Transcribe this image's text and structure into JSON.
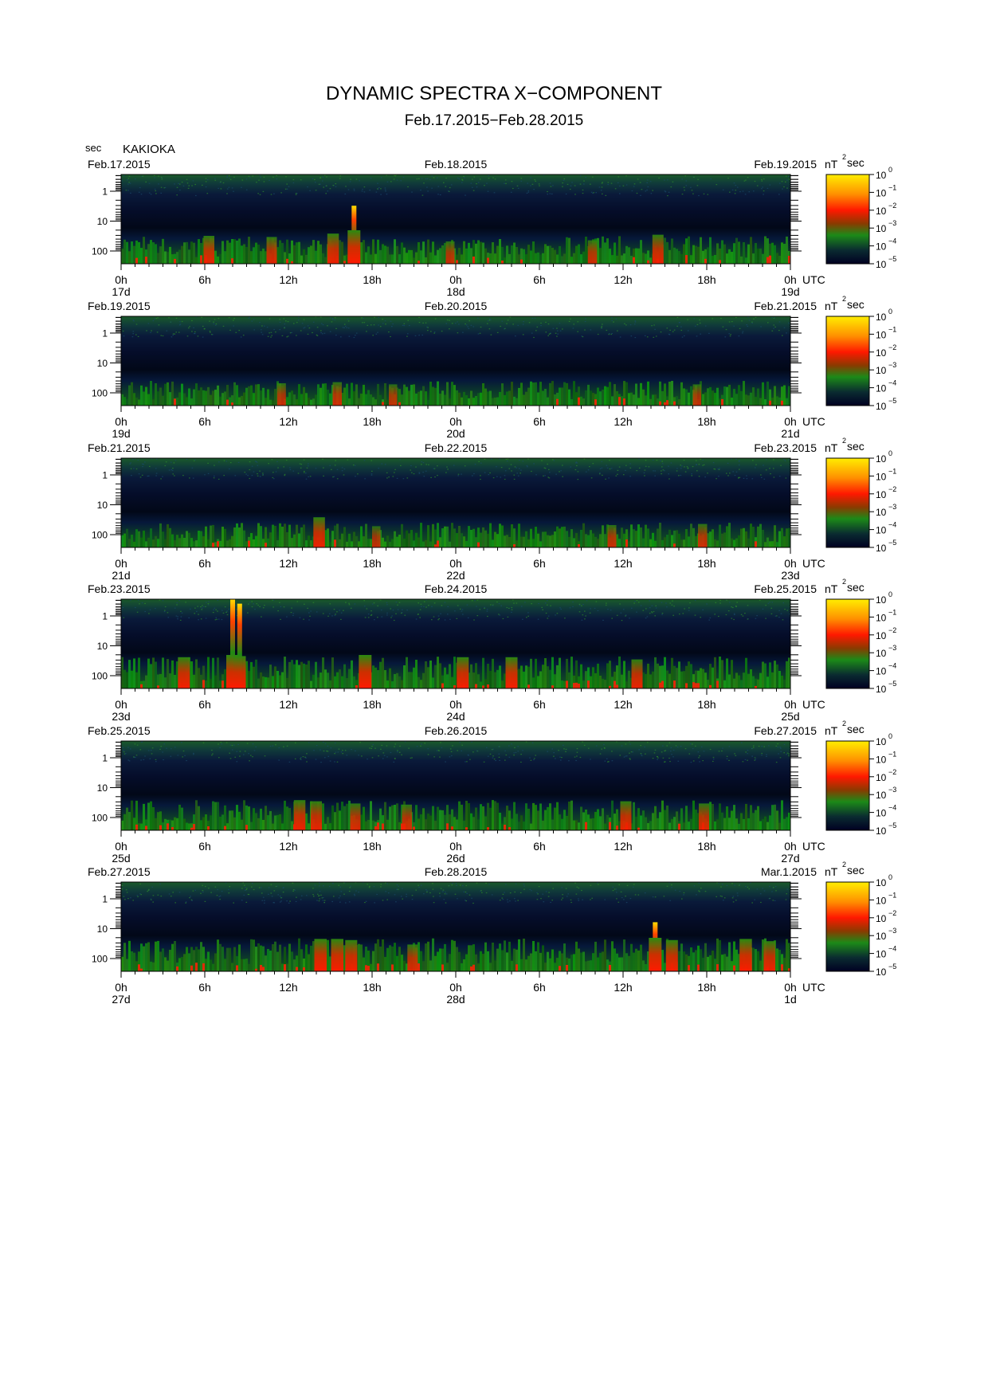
{
  "title": "DYNAMIC SPECTRA X−COMPONENT",
  "subtitle": "Feb.17.2015−Feb.28.2015",
  "y_unit": "sec",
  "station": "KAKIOKA",
  "colorbar_unit": "nT",
  "colorbar_unit_exp": "2",
  "colorbar_unit_suffix": "sec",
  "utc_label": "UTC",
  "colors": {
    "bar_top": "#ffee00",
    "bar_high": "#ff2000",
    "bar_mid": "#1c8a18",
    "bar_low": "#000022",
    "background_dark": "#000018",
    "noise_green": "#1e7a14"
  },
  "chart_data": {
    "type": "heatmap",
    "title": "DYNAMIC SPECTRA X−COMPONENT",
    "subtitle": "Feb.17.2015−Feb.28.2015",
    "ylabel": "sec",
    "y_scale": "log",
    "y_ticks": [
      "1",
      "10",
      "100"
    ],
    "x_ticks": [
      "0h",
      "6h",
      "12h",
      "18h",
      "0h",
      "6h",
      "12h",
      "18h",
      "0h"
    ],
    "colorbar": {
      "ticks": [
        "10",
        "10",
        "10",
        "10",
        "10",
        "10"
      ],
      "exponents": [
        "0",
        "−1",
        "−2",
        "−3",
        "−4",
        "−5"
      ],
      "range": [
        "10^-5",
        "10^0"
      ],
      "unit": "nT^2 sec"
    },
    "panels": [
      {
        "dates": [
          "Feb.17.2015",
          "Feb.18.2015",
          "Feb.19.2015"
        ],
        "days": [
          "17d",
          "18d",
          "19d"
        ],
        "events": [
          {
            "hour": 6.3,
            "strength": 0.75
          },
          {
            "hour": 10.8,
            "strength": 0.7
          },
          {
            "hour": 15.2,
            "strength": 0.85
          },
          {
            "hour": 16.7,
            "strength": 1.0,
            "tall": 0.65
          },
          {
            "hour": 23.6,
            "strength": 0.5
          },
          {
            "hour": 33.8,
            "strength": 0.55
          },
          {
            "hour": 38.5,
            "strength": 0.8
          }
        ],
        "activity": 0.6
      },
      {
        "dates": [
          "Feb.19.2015",
          "Feb.20.2015",
          "Feb.21.2015"
        ],
        "days": [
          "19d",
          "20d",
          "21d"
        ],
        "events": [
          {
            "hour": 11.5,
            "strength": 0.5
          },
          {
            "hour": 15.5,
            "strength": 0.55
          },
          {
            "hour": 19.5,
            "strength": 0.45
          },
          {
            "hour": 41.3,
            "strength": 0.45
          }
        ],
        "activity": 0.45
      },
      {
        "dates": [
          "Feb.21.2015",
          "Feb.22.2015",
          "Feb.23.2015"
        ],
        "days": [
          "21d",
          "22d",
          "23d"
        ],
        "events": [
          {
            "hour": 14.2,
            "strength": 0.85
          },
          {
            "hour": 18.3,
            "strength": 0.45
          },
          {
            "hour": 35.2,
            "strength": 0.5
          },
          {
            "hour": 41.7,
            "strength": 0.55
          }
        ],
        "activity": 0.45
      },
      {
        "dates": [
          "Feb.23.2015",
          "Feb.24.2015",
          "Feb.25.2015"
        ],
        "days": [
          "23d",
          "24d",
          "25d"
        ],
        "events": [
          {
            "hour": 8.0,
            "strength": 1.0,
            "tall": 1.0
          },
          {
            "hour": 8.5,
            "strength": 0.95,
            "tall": 0.95
          },
          {
            "hour": 4.5,
            "strength": 0.9
          },
          {
            "hour": 17.5,
            "strength": 1.0
          },
          {
            "hour": 24.5,
            "strength": 0.9
          },
          {
            "hour": 28.0,
            "strength": 0.9
          },
          {
            "hour": 37.0,
            "strength": 0.8
          }
        ],
        "activity": 0.85
      },
      {
        "dates": [
          "Feb.25.2015",
          "Feb.26.2015",
          "Feb.27.2015"
        ],
        "days": [
          "25d",
          "26d",
          "27d"
        ],
        "events": [
          {
            "hour": 12.8,
            "strength": 0.85
          },
          {
            "hour": 14.0,
            "strength": 0.8
          },
          {
            "hour": 16.8,
            "strength": 0.7
          },
          {
            "hour": 20.5,
            "strength": 0.65
          },
          {
            "hour": 36.2,
            "strength": 0.8
          },
          {
            "hour": 41.8,
            "strength": 0.7
          }
        ],
        "activity": 0.75
      },
      {
        "dates": [
          "Feb.27.2015",
          "Mar.1.2015"
        ],
        "date_middle": "Feb.28.2015",
        "days": [
          "27d",
          "28d",
          "1d"
        ],
        "events": [
          {
            "hour": 14.3,
            "strength": 0.95
          },
          {
            "hour": 15.5,
            "strength": 0.95
          },
          {
            "hour": 16.5,
            "strength": 0.9
          },
          {
            "hour": 20.9,
            "strength": 0.7
          },
          {
            "hour": 38.3,
            "strength": 1.0,
            "tall": 0.55
          },
          {
            "hour": 39.5,
            "strength": 0.9
          },
          {
            "hour": 44.8,
            "strength": 0.95
          },
          {
            "hour": 46.5,
            "strength": 0.85
          }
        ],
        "activity": 0.9
      }
    ]
  }
}
